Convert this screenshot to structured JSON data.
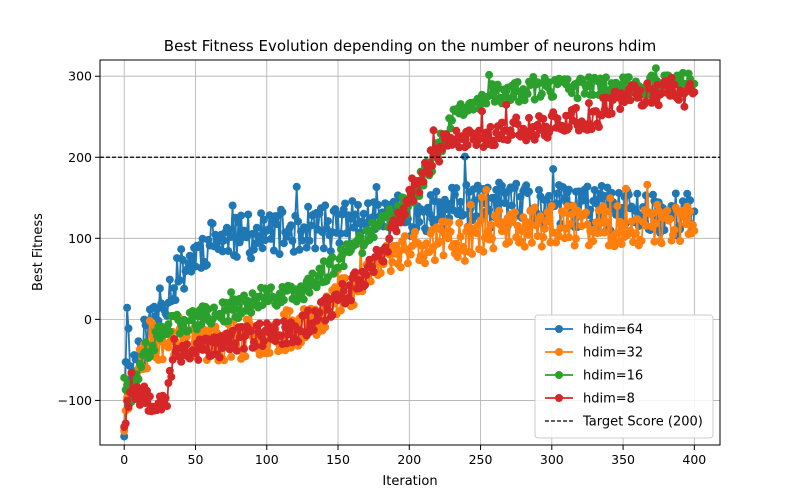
{
  "chart_data": {
    "type": "line",
    "title": "Best Fitness Evolution depending on the number of neurons hdim",
    "xlabel": "Iteration",
    "ylabel": "Best Fitness",
    "xlim": [
      -17,
      418
    ],
    "ylim": [
      -155,
      320
    ],
    "xticks": [
      0,
      50,
      100,
      150,
      200,
      250,
      300,
      350,
      400
    ],
    "yticks": [
      -100,
      0,
      100,
      200,
      300
    ],
    "grid": true,
    "legend_position": "lower-right",
    "reference_line": {
      "name": "Target Score (200)",
      "y": 200,
      "color": "#000000",
      "style": "dashed"
    },
    "series": [
      {
        "name": "hdim=64",
        "color": "#1f77b4",
        "anchors": [
          [
            0,
            -130
          ],
          [
            2,
            -5
          ],
          [
            5,
            -60
          ],
          [
            10,
            -40
          ],
          [
            20,
            0
          ],
          [
            30,
            30
          ],
          [
            40,
            60
          ],
          [
            50,
            80
          ],
          [
            60,
            95
          ],
          [
            80,
            100
          ],
          [
            100,
            105
          ],
          [
            120,
            110
          ],
          [
            150,
            115
          ],
          [
            180,
            125
          ],
          [
            200,
            130
          ],
          [
            220,
            135
          ],
          [
            250,
            140
          ],
          [
            300,
            140
          ],
          [
            350,
            135
          ],
          [
            400,
            130
          ]
        ],
        "noise": 28,
        "seed": 11
      },
      {
        "name": "hdim=32",
        "color": "#ff7f0e",
        "anchors": [
          [
            0,
            -125
          ],
          [
            5,
            -80
          ],
          [
            10,
            -60
          ],
          [
            20,
            -30
          ],
          [
            40,
            -20
          ],
          [
            60,
            -30
          ],
          [
            80,
            -25
          ],
          [
            100,
            -20
          ],
          [
            120,
            -10
          ],
          [
            140,
            10
          ],
          [
            160,
            40
          ],
          [
            180,
            70
          ],
          [
            200,
            90
          ],
          [
            230,
            100
          ],
          [
            260,
            110
          ],
          [
            300,
            115
          ],
          [
            350,
            115
          ],
          [
            400,
            120
          ]
        ],
        "noise": 25,
        "seed": 23
      },
      {
        "name": "hdim=16",
        "color": "#2ca02c",
        "anchors": [
          [
            0,
            -65
          ],
          [
            5,
            -90
          ],
          [
            10,
            -70
          ],
          [
            20,
            -30
          ],
          [
            30,
            -10
          ],
          [
            50,
            0
          ],
          [
            70,
            10
          ],
          [
            90,
            20
          ],
          [
            110,
            30
          ],
          [
            130,
            40
          ],
          [
            150,
            70
          ],
          [
            170,
            100
          ],
          [
            190,
            130
          ],
          [
            200,
            145
          ],
          [
            210,
            175
          ],
          [
            220,
            210
          ],
          [
            230,
            245
          ],
          [
            240,
            265
          ],
          [
            260,
            278
          ],
          [
            300,
            285
          ],
          [
            350,
            288
          ],
          [
            400,
            292
          ]
        ],
        "noise": 14,
        "seed": 37
      },
      {
        "name": "hdim=8",
        "color": "#d62728",
        "anchors": [
          [
            0,
            -125
          ],
          [
            5,
            -80
          ],
          [
            10,
            -90
          ],
          [
            20,
            -100
          ],
          [
            30,
            -95
          ],
          [
            35,
            -40
          ],
          [
            60,
            -35
          ],
          [
            90,
            -20
          ],
          [
            120,
            -15
          ],
          [
            140,
            10
          ],
          [
            160,
            40
          ],
          [
            180,
            80
          ],
          [
            195,
            130
          ],
          [
            205,
            160
          ],
          [
            215,
            195
          ],
          [
            225,
            215
          ],
          [
            240,
            225
          ],
          [
            260,
            230
          ],
          [
            300,
            240
          ],
          [
            330,
            250
          ],
          [
            345,
            270
          ],
          [
            360,
            278
          ],
          [
            400,
            278
          ]
        ],
        "noise": 16,
        "seed": 53
      }
    ]
  }
}
